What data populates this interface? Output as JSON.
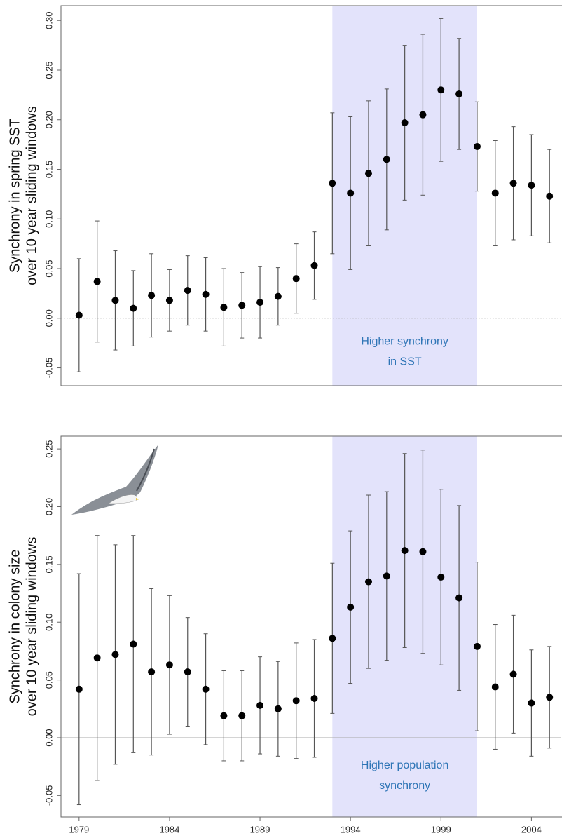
{
  "chart_data": [
    {
      "type": "errorbar",
      "y_label": [
        "Synchrony in spring SST",
        "over 10 year sliding windows"
      ],
      "x": [
        1979,
        1980,
        1981,
        1982,
        1983,
        1984,
        1985,
        1986,
        1987,
        1988,
        1989,
        1990,
        1991,
        1992,
        1993,
        1994,
        1995,
        1996,
        1997,
        1998,
        1999,
        2000,
        2001,
        2002,
        2003,
        2004,
        2005
      ],
      "values": [
        0.003,
        0.037,
        0.018,
        0.01,
        0.023,
        0.018,
        0.028,
        0.024,
        0.011,
        0.013,
        0.016,
        0.022,
        0.04,
        0.053,
        0.136,
        0.126,
        0.146,
        0.16,
        0.197,
        0.205,
        0.23,
        0.226,
        0.173,
        0.126,
        0.136,
        0.134,
        0.123
      ],
      "errors": [
        0.057,
        0.061,
        0.05,
        0.038,
        0.042,
        0.031,
        0.035,
        0.037,
        0.039,
        0.033,
        0.036,
        0.029,
        0.035,
        0.034,
        0.071,
        0.077,
        0.073,
        0.071,
        0.078,
        0.081,
        0.072,
        0.056,
        0.045,
        0.053,
        0.057,
        0.051,
        0.047
      ],
      "color": "#000000",
      "error_color": "#555555",
      "highlight": [
        1993,
        2001
      ],
      "highlight_color": "#e3e3fb",
      "annotation": [
        "Higher synchrony",
        "in SST"
      ],
      "xlim": [
        1978,
        2005.65
      ],
      "ylim": [
        -0.068,
        0.315
      ],
      "yticks": [
        {
          "value": -0.05,
          "label": "-0.05"
        },
        {
          "value": 0,
          "label": "0.00"
        },
        {
          "value": 0.05,
          "label": "0.05"
        },
        {
          "value": 0.1,
          "label": "0.10"
        },
        {
          "value": 0.15,
          "label": "0.15"
        },
        {
          "value": 0.2,
          "label": "0.20"
        },
        {
          "value": 0.25,
          "label": "0.25"
        },
        {
          "value": 0.3,
          "label": "0.30"
        }
      ]
    },
    {
      "type": "errorbar",
      "y_label": [
        "Synchrony in colony size",
        "over 10 year sliding windows"
      ],
      "x": [
        1979,
        1980,
        1981,
        1982,
        1983,
        1984,
        1985,
        1986,
        1987,
        1988,
        1989,
        1990,
        1991,
        1992,
        1993,
        1994,
        1995,
        1996,
        1997,
        1998,
        1999,
        2000,
        2001,
        2002,
        2003,
        2004,
        2005
      ],
      "values": [
        0.042,
        0.069,
        0.072,
        0.081,
        0.057,
        0.063,
        0.057,
        0.042,
        0.019,
        0.019,
        0.028,
        0.025,
        0.032,
        0.034,
        0.086,
        0.113,
        0.135,
        0.14,
        0.162,
        0.161,
        0.139,
        0.121,
        0.079,
        0.044,
        0.055,
        0.03,
        0.035
      ],
      "errors": [
        0.1,
        0.106,
        0.095,
        0.094,
        0.072,
        0.06,
        0.047,
        0.048,
        0.039,
        0.039,
        0.042,
        0.041,
        0.05,
        0.051,
        0.065,
        0.066,
        0.075,
        0.073,
        0.084,
        0.088,
        0.076,
        0.08,
        0.073,
        0.054,
        0.051,
        0.046,
        0.044
      ],
      "color": "#000000",
      "error_color": "#555555",
      "highlight": [
        1993,
        2001
      ],
      "highlight_color": "#e3e3fb",
      "annotation": [
        "Higher population",
        "synchrony"
      ],
      "xlim": [
        1978,
        2005.65
      ],
      "ylim": [
        -0.0686,
        0.261
      ],
      "xticks": [
        1979,
        1984,
        1989,
        1994,
        1999,
        2004
      ],
      "yticks": [
        {
          "value": -0.05,
          "label": "-0.05"
        },
        {
          "value": 0,
          "label": "0.00"
        },
        {
          "value": 0.05,
          "label": "0.05"
        },
        {
          "value": 0.1,
          "label": "0.10"
        },
        {
          "value": 0.15,
          "label": "0.15"
        },
        {
          "value": 0.2,
          "label": "0.20"
        },
        {
          "value": 0.25,
          "label": "0.25"
        }
      ]
    }
  ]
}
